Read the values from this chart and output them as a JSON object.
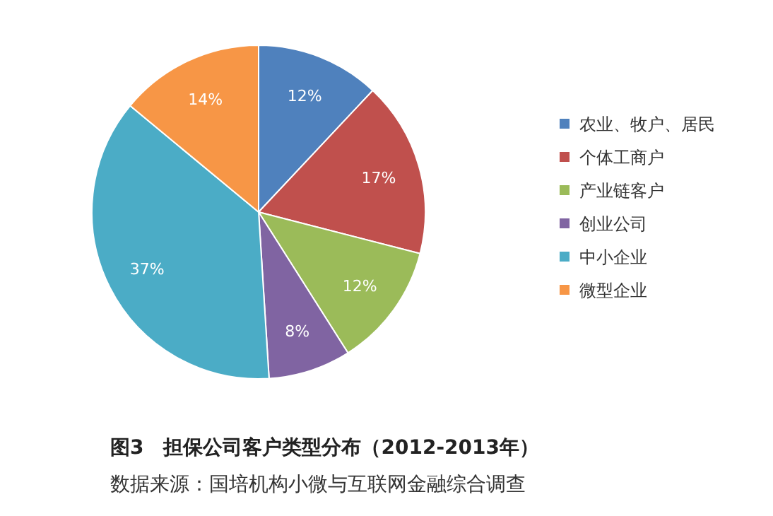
{
  "chart_data": {
    "type": "pie",
    "title": "图3　担保公司客户类型分布（2012-2013年）",
    "annotations": [
      "数据来源：国培机构小微与互联网金融综合调查"
    ],
    "categories": [
      "农业、牧户、居民",
      "个体工商户",
      "产业链客户",
      "创业公司",
      "中小企业",
      "微型企业"
    ],
    "values": [
      12,
      17,
      12,
      8,
      37,
      14
    ],
    "colors": [
      "#4f81bd",
      "#c0504d",
      "#9bbb59",
      "#8064a2",
      "#4bacc6",
      "#f79646"
    ],
    "value_labels": [
      "12%",
      "17%",
      "12%",
      "8%",
      "37%",
      "14%"
    ],
    "legend": "right"
  }
}
